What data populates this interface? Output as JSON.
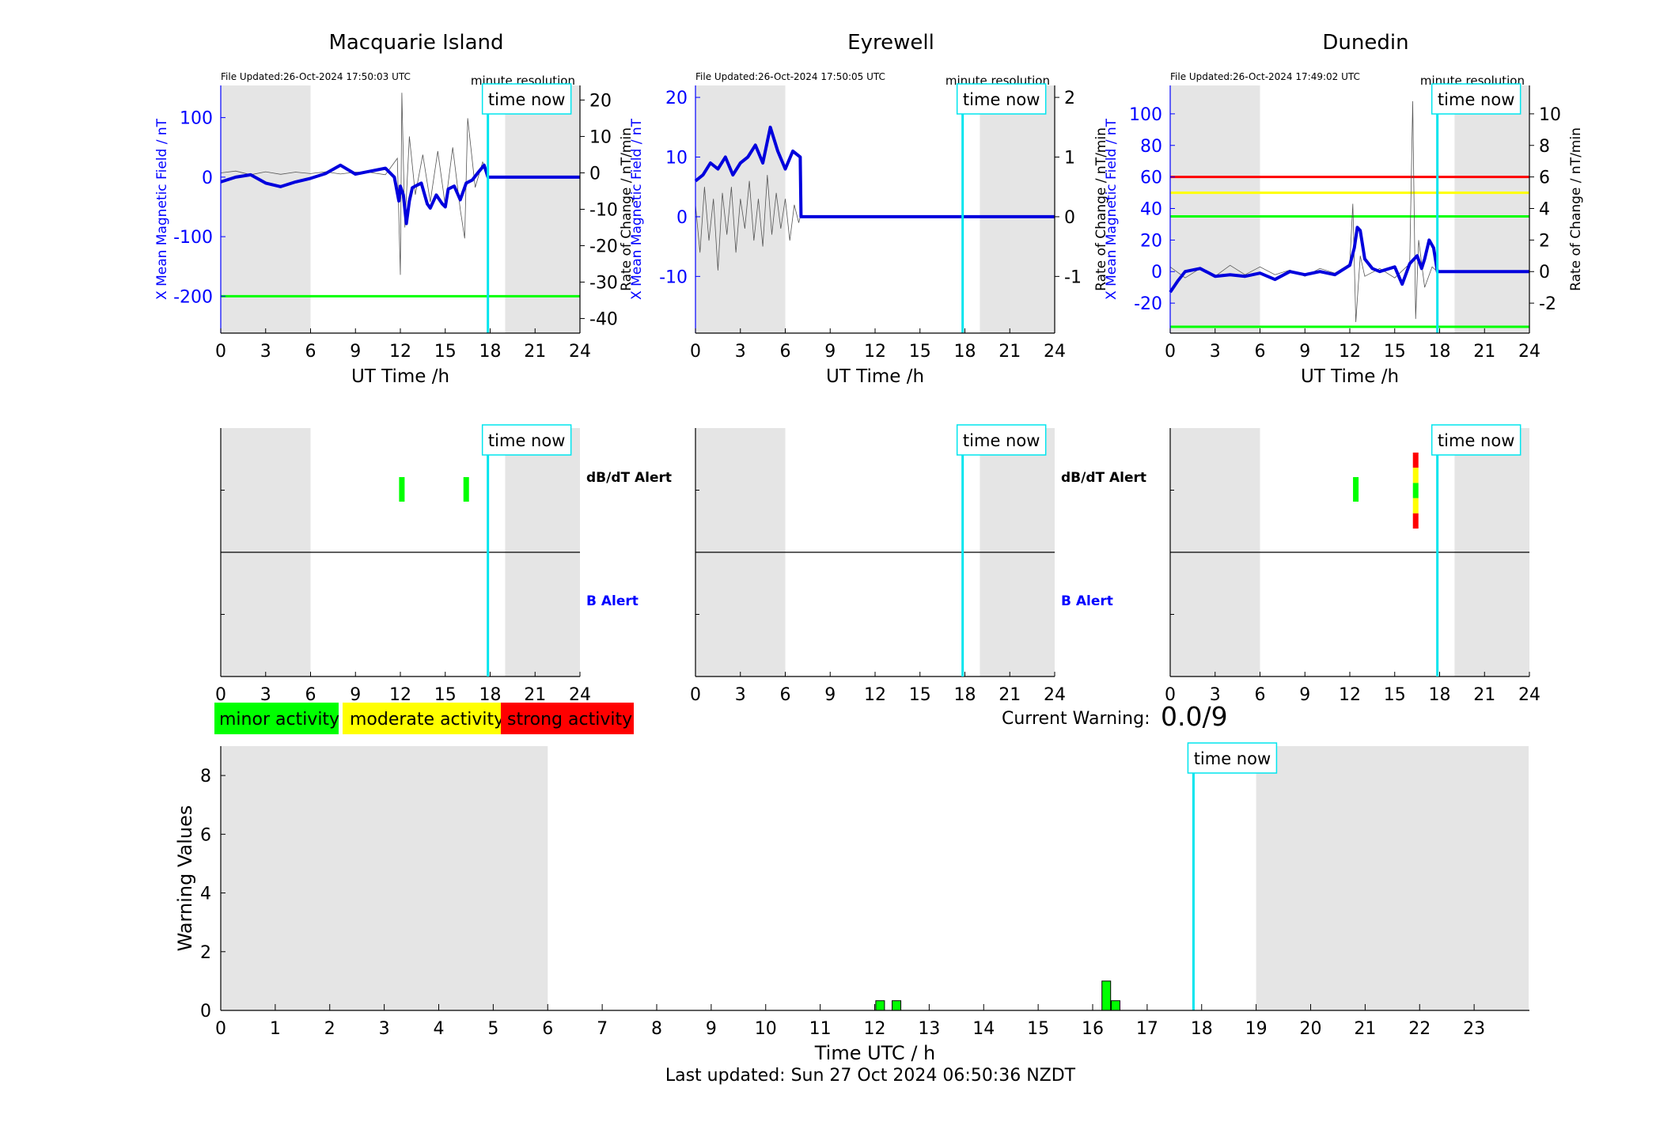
{
  "time_now_label": "time now",
  "x_ticks": [
    "0",
    "3",
    "6",
    "9",
    "12",
    "15",
    "18",
    "21",
    "24"
  ],
  "now_hour": 17.85,
  "legend": [
    {
      "label": "minor activity",
      "color": "#00ff00"
    },
    {
      "label": "moderate activity",
      "color": "#ffff00"
    },
    {
      "label": "strong activity",
      "color": "#ff0000"
    }
  ],
  "current_warning": {
    "label": "Current Warning:",
    "value": "0.0/9"
  },
  "footer": "Last updated: Sun 27 Oct 2024 06:50:36 NZDT",
  "chart_data": [
    {
      "type": "line",
      "title": "Macquarie Island",
      "file_updated": "File Updated:26-Oct-2024 17:50:03 UTC",
      "resolution": "minute resolution",
      "xlabel": "UT Time /h",
      "ylabel": "X Mean Magnetic Field / nT",
      "y2label": "Rate of Change / nT/min",
      "xlim": [
        0,
        24
      ],
      "ylim": [
        -262,
        154
      ],
      "yticks": [
        100,
        0,
        -100,
        -200
      ],
      "y2lim": [
        -44,
        24
      ],
      "y2ticks": [
        20,
        10,
        0,
        -10,
        -20,
        -30,
        -40
      ],
      "night_shading": [
        [
          0,
          6
        ],
        [
          19,
          24
        ]
      ],
      "thresholds": [
        {
          "value": -200,
          "color": "#00ff00"
        }
      ],
      "series": [
        {
          "x": [
            0,
            1,
            2,
            3,
            4,
            5,
            6,
            7,
            8,
            9,
            10,
            11,
            11.6,
            11.9,
            12,
            12.2,
            12.4,
            12.6,
            12.8,
            13,
            13.4,
            13.8,
            14,
            14.4,
            14.8,
            15,
            15.2,
            15.6,
            16,
            16.4,
            16.8,
            17.2,
            17.6,
            17.85,
            24
          ],
          "y": [
            -8,
            0,
            4,
            -10,
            -16,
            -8,
            -2,
            6,
            20,
            5,
            10,
            15,
            0,
            -40,
            -15,
            -30,
            -78,
            -40,
            -18,
            -15,
            -10,
            -45,
            -52,
            -30,
            -45,
            -50,
            -20,
            -15,
            -38,
            -10,
            -5,
            8,
            20,
            0,
            0
          ]
        }
      ],
      "rate_series": {
        "x": [
          0,
          1,
          2,
          3,
          4,
          5,
          6,
          7,
          8,
          9,
          10,
          11,
          11.8,
          12,
          12.1,
          12.3,
          12.6,
          13,
          13.5,
          14,
          14.5,
          15,
          15.5,
          16,
          16.3,
          16.5,
          17,
          17.5,
          17.85
        ],
        "y": [
          0,
          0.5,
          -0.5,
          0.3,
          -0.4,
          0.2,
          -0.2,
          0.3,
          -0.3,
          0.2,
          0.1,
          -0.5,
          4,
          -28,
          22,
          -15,
          10,
          -6,
          5,
          -8,
          6,
          -9,
          7,
          -10,
          -18,
          15,
          -4,
          3,
          0
        ]
      }
    },
    {
      "type": "line",
      "title": "Eyrewell",
      "file_updated": "File Updated:26-Oct-2024 17:50:05 UTC",
      "resolution": "minute resolution",
      "xlabel": "UT Time /h",
      "ylabel": "X Mean Magnetic Field / nT",
      "y2label": "Rate of Change / nT/min",
      "xlim": [
        0,
        24
      ],
      "ylim": [
        -19.5,
        22
      ],
      "yticks": [
        20,
        10,
        0,
        -10
      ],
      "y2lim": [
        -1.95,
        2.2
      ],
      "y2ticks": [
        2,
        1,
        0,
        -1
      ],
      "night_shading": [
        [
          0,
          6
        ],
        [
          19,
          24
        ]
      ],
      "thresholds": [],
      "series": [
        {
          "x": [
            0,
            0.5,
            1,
            1.5,
            2,
            2.5,
            3,
            3.5,
            4,
            4.5,
            5,
            5.5,
            6,
            6.5,
            7,
            7.05,
            24
          ],
          "y": [
            6,
            7,
            9,
            8,
            10,
            7,
            9,
            10,
            12,
            9,
            15,
            11,
            8,
            11,
            10,
            0,
            0
          ]
        }
      ],
      "rate_series": {
        "x": [
          0,
          0.3,
          0.6,
          0.9,
          1.2,
          1.5,
          1.8,
          2.1,
          2.4,
          2.7,
          3,
          3.3,
          3.6,
          3.9,
          4.2,
          4.5,
          4.8,
          5.1,
          5.4,
          5.7,
          6,
          6.3,
          6.6,
          6.9,
          7
        ],
        "y": [
          0.2,
          -0.6,
          0.5,
          -0.4,
          0.3,
          -0.9,
          0.4,
          -0.3,
          0.5,
          -0.6,
          0.3,
          -0.2,
          0.6,
          -0.4,
          0.3,
          -0.5,
          0.7,
          -0.3,
          0.4,
          -0.2,
          0.3,
          -0.4,
          0.2,
          -0.1,
          0
        ]
      }
    },
    {
      "type": "line",
      "title": "Dunedin",
      "file_updated": "File Updated:26-Oct-2024 17:49:02 UTC",
      "resolution": "minute resolution",
      "xlabel": "UT Time /h",
      "ylabel": "X Mean Magnetic Field / nT",
      "y2label": "Rate of Change / nT/min",
      "xlim": [
        0,
        24
      ],
      "ylim": [
        -39,
        118
      ],
      "yticks": [
        100,
        80,
        60,
        40,
        20,
        0,
        -20
      ],
      "y2lim": [
        -3.9,
        11.8
      ],
      "y2ticks": [
        10,
        8,
        6,
        4,
        2,
        0,
        -2
      ],
      "night_shading": [
        [
          0,
          6
        ],
        [
          19,
          24
        ]
      ],
      "thresholds": [
        {
          "value": 60,
          "color": "#ff0000"
        },
        {
          "value": 50,
          "color": "#ffff00"
        },
        {
          "value": 35,
          "color": "#00ff00"
        },
        {
          "value": -35,
          "color": "#00ff00"
        }
      ],
      "series": [
        {
          "x": [
            0,
            0.5,
            1,
            2,
            3,
            4,
            5,
            6,
            7,
            8,
            9,
            10,
            11,
            12,
            12.3,
            12.5,
            12.7,
            13,
            13.5,
            14,
            15,
            15.5,
            16,
            16.5,
            16.8,
            17,
            17.3,
            17.6,
            17.85,
            24
          ],
          "y": [
            -13,
            -6,
            0,
            2,
            -3,
            -2,
            -3,
            -1,
            -5,
            0,
            -2,
            0,
            -2,
            4,
            15,
            28,
            26,
            8,
            2,
            0,
            3,
            -8,
            5,
            10,
            2,
            8,
            20,
            15,
            0,
            0
          ]
        }
      ],
      "rate_series": {
        "x": [
          0,
          1,
          2,
          3,
          4,
          5,
          6,
          7,
          8,
          9,
          10,
          11,
          12,
          12.2,
          12.4,
          12.7,
          13,
          14,
          15,
          16,
          16.2,
          16.4,
          16.6,
          17,
          17.5,
          17.85
        ],
        "y": [
          0.3,
          -0.4,
          0.2,
          -0.3,
          0.4,
          -0.2,
          0.3,
          -0.2,
          0.1,
          -0.3,
          0.2,
          -0.1,
          0.5,
          4.3,
          -3.2,
          1,
          -0.3,
          0.2,
          -0.4,
          0.5,
          10.8,
          -3,
          2,
          -1,
          0.3,
          0
        ]
      }
    },
    {
      "type": "bar",
      "title": "",
      "panel_labels": [
        "dB/dT Alert",
        "B Alert"
      ],
      "alerts": [
        {
          "station": "Macquarie Island",
          "row": "dB/dT Alert",
          "hour": 12.1,
          "color": "#00ff00"
        },
        {
          "station": "Macquarie Island",
          "row": "dB/dT Alert",
          "hour": 16.4,
          "color": "#00ff00"
        },
        {
          "station": "Dunedin",
          "row": "dB/dT Alert",
          "hour": 12.4,
          "color": "#00ff00"
        },
        {
          "station": "Dunedin",
          "row": "dB/dT Alert",
          "hour": 16.4,
          "levels": [
            "#ff0000",
            "#ffff00",
            "#00ff00",
            "#ffff00",
            "#ff0000"
          ]
        }
      ]
    },
    {
      "type": "bar",
      "title": "",
      "xlabel": "Time UTC / h",
      "ylabel": "Warning Values",
      "xlim": [
        0,
        24
      ],
      "xticks": [
        0,
        1,
        2,
        3,
        4,
        5,
        6,
        7,
        8,
        9,
        10,
        11,
        12,
        13,
        14,
        15,
        16,
        17,
        18,
        19,
        20,
        21,
        22,
        23
      ],
      "ylim": [
        0,
        9
      ],
      "yticks": [
        0,
        2,
        4,
        6,
        8
      ],
      "night_shading": [
        [
          0,
          6
        ],
        [
          19,
          24
        ]
      ],
      "bars": [
        {
          "hour": 12.1,
          "value": 0.33,
          "color": "#00ff00"
        },
        {
          "hour": 12.4,
          "value": 0.33,
          "color": "#00ff00"
        },
        {
          "hour": 16.25,
          "value": 1.0,
          "color": "#00ff00"
        },
        {
          "hour": 16.42,
          "value": 0.33,
          "color": "#00ff00"
        }
      ]
    }
  ]
}
